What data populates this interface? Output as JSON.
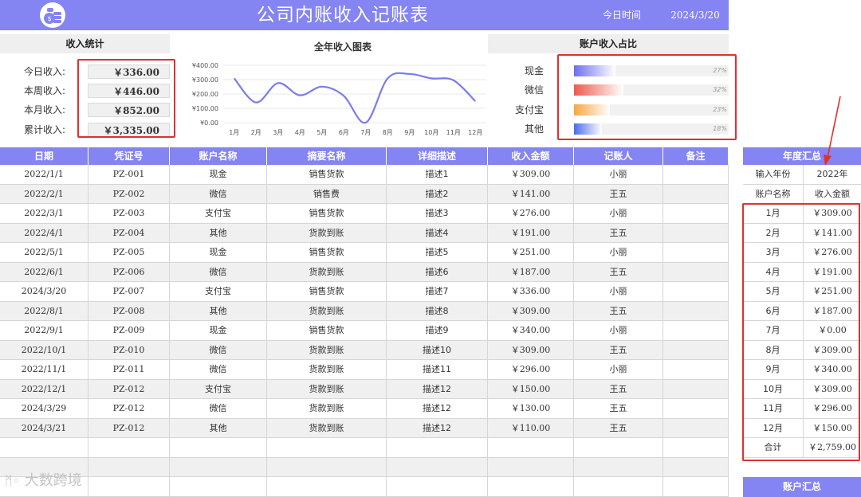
{
  "header": {
    "title": "公司内账收入记账表",
    "today_label": "今日时间",
    "today_value": "2024/3/20"
  },
  "income_stats": {
    "title": "收入统计",
    "items": [
      {
        "label": "今日收入:",
        "value": "￥336.00"
      },
      {
        "label": "本周收入:",
        "value": "￥446.00"
      },
      {
        "label": "本月收入:",
        "value": "￥852.00"
      },
      {
        "label": "累计收入:",
        "value": "￥3,335.00"
      }
    ]
  },
  "year_chart": {
    "title": "全年收入图表",
    "chart_data": {
      "type": "line",
      "categories": [
        "1月",
        "2月",
        "3月",
        "4月",
        "5月",
        "6月",
        "7月",
        "8月",
        "9月",
        "10月",
        "11月",
        "12月"
      ],
      "values": [
        309,
        141,
        276,
        191,
        251,
        187,
        0,
        309,
        340,
        309,
        296,
        150
      ],
      "ylim": [
        0,
        400
      ],
      "yticks": [
        "¥0.00",
        "¥100.00",
        "¥200.00",
        "¥300.00",
        "¥400.00"
      ],
      "color": "#7b7bef",
      "grid": true
    }
  },
  "account_share": {
    "title": "账户收入占比",
    "items": [
      {
        "label": "现金",
        "percent": 27,
        "pct_text": "27%",
        "color": "#6f6ff0"
      },
      {
        "label": "微信",
        "percent": 32,
        "pct_text": "32%",
        "color": "#ee5a4c"
      },
      {
        "label": "支付宝",
        "percent": 23,
        "pct_text": "23%",
        "color": "#f5a742"
      },
      {
        "label": "其他",
        "percent": 18,
        "pct_text": "18%",
        "color": "#4a6ee6"
      }
    ]
  },
  "table": {
    "headers": [
      "日期",
      "凭证号",
      "账户名称",
      "摘要名称",
      "详细描述",
      "收入金额",
      "记账人",
      "备注"
    ],
    "rows": [
      [
        "2022/1/1",
        "PZ-001",
        "现金",
        "销售货款",
        "描述1",
        "￥309.00",
        "小丽",
        ""
      ],
      [
        "2022/2/1",
        "PZ-002",
        "微信",
        "销售费",
        "描述2",
        "￥141.00",
        "王五",
        ""
      ],
      [
        "2022/3/1",
        "PZ-003",
        "支付宝",
        "销售货款",
        "描述3",
        "￥276.00",
        "小丽",
        ""
      ],
      [
        "2022/4/1",
        "PZ-004",
        "其他",
        "货款到账",
        "描述4",
        "￥191.00",
        "王五",
        ""
      ],
      [
        "2022/5/1",
        "PZ-005",
        "现金",
        "销售货款",
        "描述5",
        "￥251.00",
        "小丽",
        ""
      ],
      [
        "2022/6/1",
        "PZ-006",
        "微信",
        "货款到账",
        "描述6",
        "￥187.00",
        "王五",
        ""
      ],
      [
        "2024/3/20",
        "PZ-007",
        "支付宝",
        "销售货款",
        "描述7",
        "￥336.00",
        "小丽",
        ""
      ],
      [
        "2022/8/1",
        "PZ-008",
        "其他",
        "货款到账",
        "描述8",
        "￥309.00",
        "王五",
        ""
      ],
      [
        "2022/9/1",
        "PZ-009",
        "现金",
        "销售货款",
        "描述9",
        "￥340.00",
        "小丽",
        ""
      ],
      [
        "2022/10/1",
        "PZ-010",
        "微信",
        "货款到账",
        "描述10",
        "￥309.00",
        "王五",
        ""
      ],
      [
        "2022/11/1",
        "PZ-011",
        "微信",
        "货款到账",
        "描述11",
        "￥296.00",
        "小丽",
        ""
      ],
      [
        "2022/12/1",
        "PZ-012",
        "支付宝",
        "货款到账",
        "描述12",
        "￥150.00",
        "王五",
        ""
      ],
      [
        "2024/3/29",
        "PZ-012",
        "微信",
        "货款到账",
        "描述12",
        "￥130.00",
        "王五",
        ""
      ],
      [
        "2024/3/21",
        "PZ-012",
        "其他",
        "货款到账",
        "描述12",
        "￥110.00",
        "王五",
        ""
      ],
      [
        "",
        "",
        "",
        "",
        "",
        "",
        "",
        ""
      ],
      [
        "",
        "",
        "",
        "",
        "",
        "",
        "",
        ""
      ],
      [
        "",
        "",
        "",
        "",
        "",
        "",
        "",
        ""
      ]
    ]
  },
  "yearly_summary": {
    "title": "年度汇总",
    "year_label": "输入年份",
    "year_value": "2022年",
    "col_account": "账户名称",
    "col_amount": "收入金额",
    "months": [
      {
        "month": "1月",
        "amount": "￥309.00"
      },
      {
        "month": "2月",
        "amount": "￥141.00"
      },
      {
        "month": "3月",
        "amount": "￥276.00"
      },
      {
        "month": "4月",
        "amount": "￥191.00"
      },
      {
        "month": "5月",
        "amount": "￥251.00"
      },
      {
        "month": "6月",
        "amount": "￥187.00"
      },
      {
        "month": "7月",
        "amount": "￥0.00"
      },
      {
        "month": "8月",
        "amount": "￥309.00"
      },
      {
        "month": "9月",
        "amount": "￥340.00"
      },
      {
        "month": "10月",
        "amount": "￥309.00"
      },
      {
        "month": "11月",
        "amount": "￥296.00"
      },
      {
        "month": "12月",
        "amount": "￥150.00"
      }
    ],
    "total_label": "合计",
    "total_value": "￥2,759.00"
  },
  "account_summary_button": "账户汇总",
  "watermark": "大数跨境"
}
